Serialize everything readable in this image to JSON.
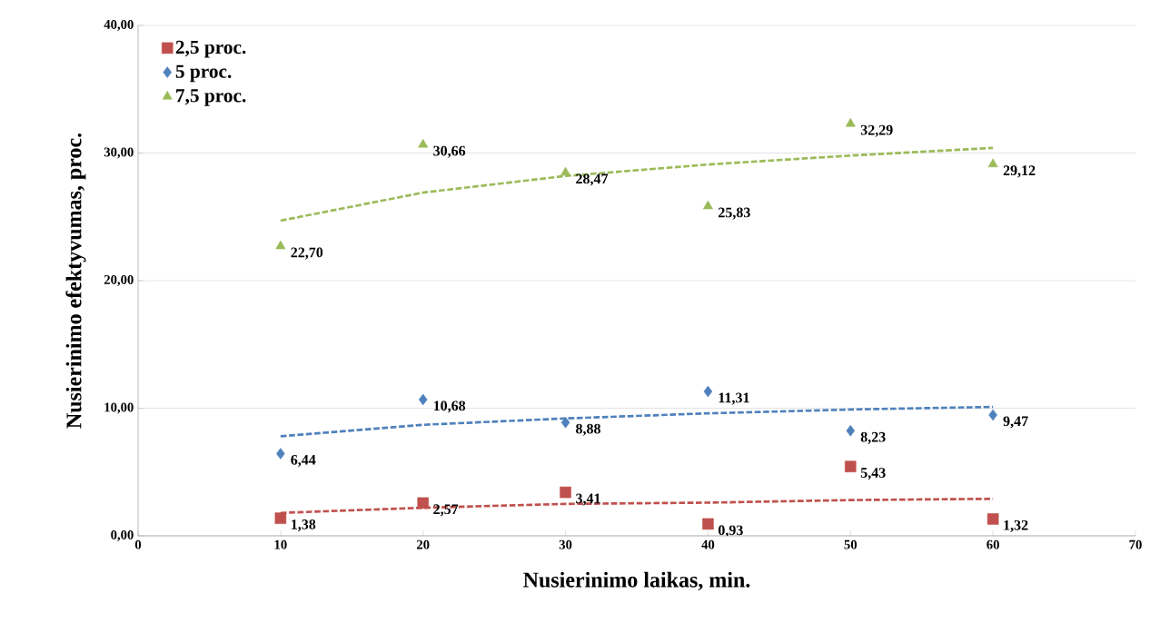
{
  "chart_data": {
    "type": "scatter",
    "xlabel": "Nusierinimo laikas, min.",
    "ylabel": "Nusierinimo efektyvumas,  proc.",
    "x": [
      10,
      20,
      30,
      40,
      50,
      60
    ],
    "series": [
      {
        "name": "2,5 proc.",
        "color": "#c0504d",
        "marker": "square",
        "values": [
          1.38,
          2.57,
          3.41,
          0.93,
          5.43,
          1.32
        ],
        "value_labels": [
          "1,38",
          "2,57",
          "3,41",
          "0,93",
          "5,43",
          "1,32"
        ]
      },
      {
        "name": "5 proc.",
        "color": "#4f81bd",
        "marker": "diamond",
        "values": [
          6.44,
          10.68,
          8.88,
          11.31,
          8.23,
          9.47
        ],
        "value_labels": [
          "6,44",
          "10,68",
          "8,88",
          "11,31",
          "8,23",
          "9,47"
        ]
      },
      {
        "name": "7,5 proc.",
        "color": "#9bbb59",
        "marker": "triangle",
        "values": [
          22.7,
          30.66,
          28.47,
          25.83,
          32.29,
          29.12
        ],
        "value_labels": [
          "22,70",
          "30,66",
          "28,47",
          "25,83",
          "32,29",
          "29,12"
        ]
      },
      {
        "type": "line",
        "color": "#c0504d",
        "line_style": "dashed",
        "marker": "none",
        "x": [
          10,
          20,
          30,
          40,
          50,
          60
        ],
        "values": [
          1.8,
          2.2,
          2.5,
          2.6,
          2.8,
          2.9
        ]
      },
      {
        "type": "line",
        "color": "#4f81bd",
        "line_style": "dashed",
        "marker": "none",
        "x": [
          10,
          20,
          30,
          40,
          50,
          60
        ],
        "values": [
          7.8,
          8.7,
          9.2,
          9.6,
          9.9,
          10.1
        ]
      },
      {
        "type": "line",
        "color": "#9bbb59",
        "line_style": "dashed",
        "marker": "none",
        "x": [
          10,
          20,
          30,
          40,
          50,
          60
        ],
        "values": [
          24.7,
          26.9,
          28.2,
          29.1,
          29.8,
          30.4
        ]
      }
    ],
    "xlim": [
      0,
      70
    ],
    "xticks": [
      0,
      10,
      20,
      30,
      40,
      50,
      60,
      70
    ],
    "ylim": [
      0,
      40
    ],
    "yticks": [
      {
        "value": 0,
        "label": "0,00"
      },
      {
        "value": 10,
        "label": "10,00"
      },
      {
        "value": 20,
        "label": "20,00"
      },
      {
        "value": 30,
        "label": "30,00"
      },
      {
        "value": 40,
        "label": "40,00"
      }
    ],
    "grid": "y",
    "legend": "top left"
  }
}
